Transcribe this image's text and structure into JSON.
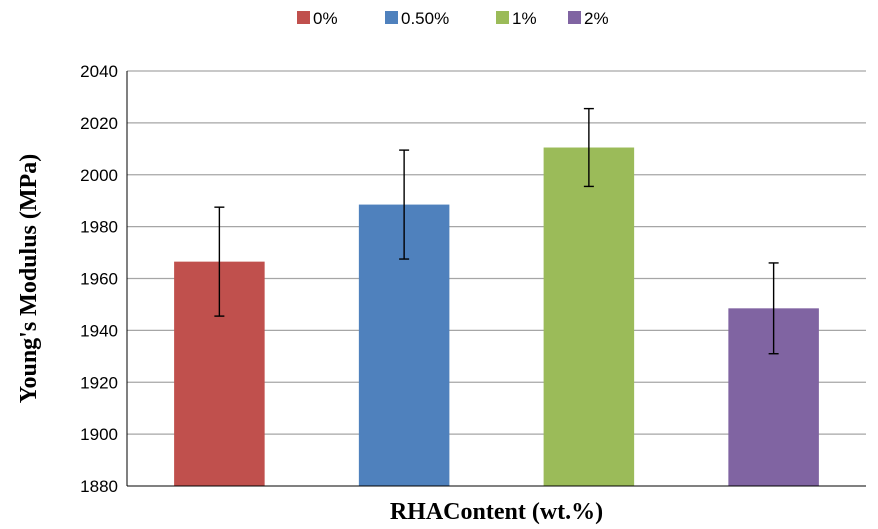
{
  "chart_data": {
    "type": "bar",
    "xlabel": "RHAContent (wt.%)",
    "ylabel": "Young's Modulus (MPa)",
    "ylim": [
      1880,
      2040
    ],
    "yticks": [
      1880,
      1900,
      1920,
      1940,
      1960,
      1980,
      2000,
      2020,
      2040
    ],
    "grid": true,
    "legend_position": "top",
    "series": [
      {
        "name": "0%",
        "value": 1966.5,
        "error_low": 1945.5,
        "error_high": 1987.5,
        "color": "#c0504d"
      },
      {
        "name": "0.50%",
        "value": 1988.5,
        "error_low": 1967.5,
        "error_high": 2009.5,
        "color": "#4f81bd"
      },
      {
        "name": "1%",
        "value": 2010.5,
        "error_low": 1995.5,
        "error_high": 2025.5,
        "color": "#9bbb59"
      },
      {
        "name": "2%",
        "value": 1948.5,
        "error_low": 1931,
        "error_high": 1966,
        "color": "#8064a2"
      }
    ]
  }
}
